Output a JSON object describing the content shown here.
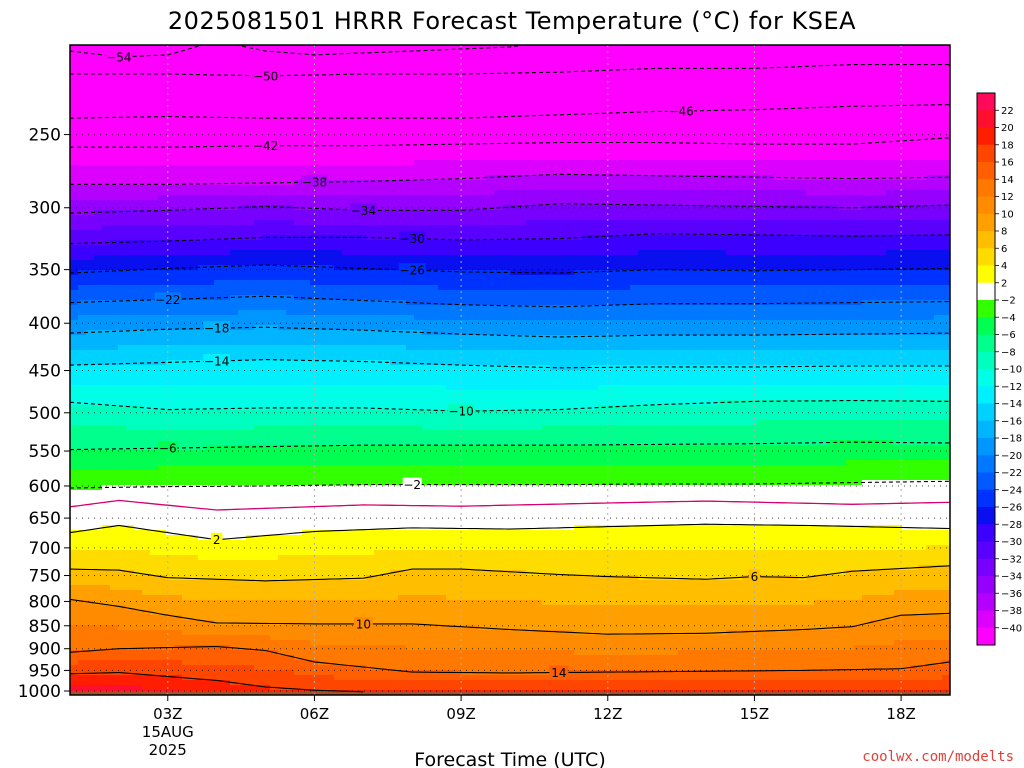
{
  "chart_data": {
    "type": "heatmap",
    "title": "2025081501 HRRR Forecast Temperature (°C) for KSEA",
    "xlabel": "Forecast Time (UTC)",
    "ylabel": "",
    "credit": "coolwx.com/modelts",
    "x_ticks": [
      {
        "hour": 3,
        "label": "03Z",
        "extra": [
          "15AUG",
          "2025"
        ]
      },
      {
        "hour": 6,
        "label": "06Z"
      },
      {
        "hour": 9,
        "label": "09Z"
      },
      {
        "hour": 12,
        "label": "12Z"
      },
      {
        "hour": 15,
        "label": "15Z"
      },
      {
        "hour": 18,
        "label": "18Z"
      }
    ],
    "xlim_hours": [
      1,
      19
    ],
    "y_ticks": [
      250,
      300,
      350,
      400,
      450,
      500,
      550,
      600,
      650,
      700,
      750,
      800,
      850,
      900,
      950,
      1000
    ],
    "ylim_hPa": [
      200,
      1010
    ],
    "y_scale": "log",
    "ground_color": "#a0522d",
    "colorbar": {
      "ticks": [
        22,
        20,
        18,
        16,
        14,
        12,
        10,
        8,
        6,
        4,
        2,
        -2,
        -4,
        -6,
        -8,
        -10,
        -12,
        -14,
        -16,
        -18,
        -20,
        -22,
        -24,
        -26,
        -28,
        -30,
        -32,
        -34,
        -36,
        -38,
        -40
      ],
      "bands": [
        {
          "lo": 22,
          "hi": 24,
          "color": "#ff0a5a"
        },
        {
          "lo": 20,
          "hi": 22,
          "color": "#ff0f2d"
        },
        {
          "lo": 18,
          "hi": 20,
          "color": "#ff1e00"
        },
        {
          "lo": 16,
          "hi": 18,
          "color": "#ff4600"
        },
        {
          "lo": 14,
          "hi": 16,
          "color": "#ff5f00"
        },
        {
          "lo": 12,
          "hi": 14,
          "color": "#ff7800"
        },
        {
          "lo": 10,
          "hi": 12,
          "color": "#ff8c00"
        },
        {
          "lo": 8,
          "hi": 10,
          "color": "#ffa000"
        },
        {
          "lo": 6,
          "hi": 8,
          "color": "#ffbe00"
        },
        {
          "lo": 4,
          "hi": 6,
          "color": "#ffdc00"
        },
        {
          "lo": 2,
          "hi": 4,
          "color": "#ffff00"
        },
        {
          "lo": -2,
          "hi": 2,
          "color": "#ffffff"
        },
        {
          "lo": -4,
          "hi": -2,
          "color": "#32ff00"
        },
        {
          "lo": -6,
          "hi": -4,
          "color": "#00ff50"
        },
        {
          "lo": -8,
          "hi": -6,
          "color": "#00ff8c"
        },
        {
          "lo": -10,
          "hi": -8,
          "color": "#00ffbe"
        },
        {
          "lo": -12,
          "hi": -10,
          "color": "#00ffe6"
        },
        {
          "lo": -14,
          "hi": -12,
          "color": "#00f0ff"
        },
        {
          "lo": -16,
          "hi": -14,
          "color": "#00d2ff"
        },
        {
          "lo": -18,
          "hi": -16,
          "color": "#00b4ff"
        },
        {
          "lo": -20,
          "hi": -18,
          "color": "#0096ff"
        },
        {
          "lo": -22,
          "hi": -20,
          "color": "#0078ff"
        },
        {
          "lo": -24,
          "hi": -22,
          "color": "#005aff"
        },
        {
          "lo": -26,
          "hi": -24,
          "color": "#0032ff"
        },
        {
          "lo": -28,
          "hi": -26,
          "color": "#0a0ff0"
        },
        {
          "lo": -30,
          "hi": -28,
          "color": "#3c00ff"
        },
        {
          "lo": -32,
          "hi": -30,
          "color": "#5a00ff"
        },
        {
          "lo": -34,
          "hi": -32,
          "color": "#7800ff"
        },
        {
          "lo": -36,
          "hi": -34,
          "color": "#9600ff"
        },
        {
          "lo": -38,
          "hi": -36,
          "color": "#b400ff"
        },
        {
          "lo": -40,
          "hi": -38,
          "color": "#dc00ff"
        },
        {
          "lo": -44,
          "hi": -40,
          "color": "#ff00ff"
        }
      ]
    },
    "isotherms": [
      {
        "t": -54,
        "label_hour": 2.0,
        "points": [
          [
            1,
            203
          ],
          [
            2,
            206
          ],
          [
            3,
            205
          ],
          [
            4,
            198
          ],
          [
            5,
            203
          ],
          [
            6,
            205
          ],
          [
            8,
            203
          ],
          [
            10,
            201
          ],
          [
            11,
            197
          ],
          [
            12,
            194
          ],
          [
            13,
            190
          ],
          [
            15,
            188
          ],
          [
            18,
            186
          ],
          [
            19,
            186
          ]
        ]
      },
      {
        "t": -50,
        "label_hour": 5.0,
        "points": [
          [
            1,
            215
          ],
          [
            3,
            215
          ],
          [
            5,
            216
          ],
          [
            7,
            215
          ],
          [
            9,
            215
          ],
          [
            11,
            214
          ],
          [
            13,
            212
          ],
          [
            15,
            212
          ],
          [
            17,
            210
          ],
          [
            19,
            210
          ]
        ]
      },
      {
        "t": -46,
        "label_hour": 13.5,
        "points": [
          [
            1,
            240
          ],
          [
            3,
            239
          ],
          [
            5,
            240
          ],
          [
            7,
            240
          ],
          [
            9,
            240
          ],
          [
            11,
            238
          ],
          [
            13,
            236
          ],
          [
            15,
            235
          ],
          [
            17,
            233
          ],
          [
            19,
            232
          ]
        ]
      },
      {
        "t": -42,
        "label_hour": 5.0,
        "points": [
          [
            1,
            258
          ],
          [
            3,
            258
          ],
          [
            5,
            257
          ],
          [
            7,
            257
          ],
          [
            9,
            256
          ],
          [
            11,
            255
          ],
          [
            13,
            255
          ],
          [
            15,
            256
          ],
          [
            17,
            256
          ],
          [
            19,
            252
          ]
        ]
      },
      {
        "t": -38,
        "label_hour": 6.0,
        "points": [
          [
            1,
            283
          ],
          [
            3,
            283
          ],
          [
            5,
            282
          ],
          [
            7,
            281
          ],
          [
            9,
            279
          ],
          [
            11,
            276
          ],
          [
            13,
            277
          ],
          [
            15,
            278
          ],
          [
            17,
            279
          ],
          [
            19,
            278
          ]
        ]
      },
      {
        "t": -34,
        "label_hour": 7.0,
        "points": [
          [
            1,
            304
          ],
          [
            3,
            302
          ],
          [
            5,
            299
          ],
          [
            7,
            302
          ],
          [
            9,
            302
          ],
          [
            11,
            297
          ],
          [
            13,
            298
          ],
          [
            15,
            299
          ],
          [
            17,
            300
          ],
          [
            19,
            298
          ]
        ]
      },
      {
        "t": -30,
        "label_hour": 8.0,
        "points": [
          [
            1,
            328
          ],
          [
            3,
            326
          ],
          [
            5,
            323
          ],
          [
            7,
            323
          ],
          [
            9,
            325
          ],
          [
            11,
            324
          ],
          [
            13,
            320
          ],
          [
            15,
            321
          ],
          [
            17,
            322
          ],
          [
            19,
            321
          ]
        ]
      },
      {
        "t": -26,
        "label_hour": 8.0,
        "points": [
          [
            1,
            353
          ],
          [
            3,
            349
          ],
          [
            5,
            346
          ],
          [
            7,
            349
          ],
          [
            9,
            352
          ],
          [
            11,
            353
          ],
          [
            13,
            350
          ],
          [
            15,
            351
          ],
          [
            17,
            350
          ],
          [
            19,
            349
          ]
        ]
      },
      {
        "t": -22,
        "label_hour": 3.0,
        "points": [
          [
            1,
            380
          ],
          [
            3,
            377
          ],
          [
            5,
            374
          ],
          [
            7,
            378
          ],
          [
            9,
            382
          ],
          [
            11,
            384
          ],
          [
            13,
            381
          ],
          [
            15,
            381
          ],
          [
            17,
            380
          ],
          [
            19,
            379
          ]
        ]
      },
      {
        "t": -18,
        "label_hour": 4.0,
        "points": [
          [
            1,
            410
          ],
          [
            3,
            406
          ],
          [
            5,
            404
          ],
          [
            7,
            407
          ],
          [
            9,
            411
          ],
          [
            11,
            414
          ],
          [
            13,
            412
          ],
          [
            15,
            412
          ],
          [
            17,
            411
          ],
          [
            19,
            410
          ]
        ]
      },
      {
        "t": -14,
        "label_hour": 4.0,
        "points": [
          [
            1,
            444
          ],
          [
            3,
            441
          ],
          [
            5,
            438
          ],
          [
            7,
            440
          ],
          [
            9,
            444
          ],
          [
            11,
            447
          ],
          [
            13,
            446
          ],
          [
            15,
            446
          ],
          [
            17,
            445
          ],
          [
            19,
            445
          ]
        ]
      },
      {
        "t": -10,
        "label_hour": 9.0,
        "points": [
          [
            1,
            487
          ],
          [
            3,
            496
          ],
          [
            5,
            494
          ],
          [
            7,
            494
          ],
          [
            9,
            498
          ],
          [
            11,
            496
          ],
          [
            13,
            490
          ],
          [
            15,
            486
          ],
          [
            17,
            485
          ],
          [
            19,
            486
          ]
        ]
      },
      {
        "t": -6,
        "label_hour": 3.0,
        "points": [
          [
            1,
            548
          ],
          [
            3,
            546
          ],
          [
            5,
            544
          ],
          [
            7,
            542
          ],
          [
            9,
            542
          ],
          [
            11,
            542
          ],
          [
            13,
            541
          ],
          [
            15,
            540
          ],
          [
            17,
            538
          ],
          [
            19,
            539
          ]
        ]
      },
      {
        "t": -2,
        "label_hour": 8.0,
        "points": [
          [
            1,
            603
          ],
          [
            3,
            601
          ],
          [
            5,
            600
          ],
          [
            7,
            598
          ],
          [
            9,
            598
          ],
          [
            11,
            598
          ],
          [
            13,
            597
          ],
          [
            15,
            597
          ],
          [
            17,
            595
          ],
          [
            19,
            593
          ]
        ]
      },
      {
        "t": 0,
        "label_hour": null,
        "points": [
          [
            1,
            632
          ],
          [
            2,
            622
          ],
          [
            4,
            637
          ],
          [
            7,
            629
          ],
          [
            9,
            631
          ],
          [
            12,
            626
          ],
          [
            14,
            623
          ],
          [
            17,
            628
          ],
          [
            19,
            625
          ]
        ]
      },
      {
        "t": 2,
        "label_hour": 4.0,
        "points": [
          [
            1,
            674
          ],
          [
            2,
            662
          ],
          [
            4,
            686
          ],
          [
            6,
            672
          ],
          [
            8,
            666
          ],
          [
            10,
            668
          ],
          [
            12,
            664
          ],
          [
            14,
            660
          ],
          [
            16,
            662
          ],
          [
            19,
            667
          ]
        ]
      },
      {
        "t": 6,
        "label_hour": 15.0,
        "points": [
          [
            1,
            738
          ],
          [
            2,
            740
          ],
          [
            3,
            754
          ],
          [
            5,
            760
          ],
          [
            7,
            755
          ],
          [
            8,
            738
          ],
          [
            9,
            738
          ],
          [
            11,
            748
          ],
          [
            12,
            752
          ],
          [
            14,
            757
          ],
          [
            15,
            752
          ],
          [
            16,
            754
          ],
          [
            17,
            742
          ],
          [
            19,
            732
          ]
        ]
      },
      {
        "t": 10,
        "label_hour": 7.0,
        "points": [
          [
            1,
            796
          ],
          [
            2,
            810
          ],
          [
            3,
            828
          ],
          [
            4,
            844
          ],
          [
            6,
            846
          ],
          [
            8,
            846
          ],
          [
            10,
            858
          ],
          [
            12,
            868
          ],
          [
            14,
            866
          ],
          [
            16,
            858
          ],
          [
            17,
            852
          ],
          [
            18,
            828
          ],
          [
            19,
            824
          ]
        ]
      },
      {
        "t": 14,
        "label_hour": 11.0,
        "points": [
          [
            1,
            908
          ],
          [
            2,
            900
          ],
          [
            4,
            895
          ],
          [
            5,
            904
          ],
          [
            6,
            930
          ],
          [
            8,
            954
          ],
          [
            10,
            956
          ],
          [
            12,
            954
          ],
          [
            14,
            952
          ],
          [
            16,
            950
          ],
          [
            18,
            946
          ],
          [
            19,
            930
          ]
        ]
      },
      {
        "t": 18,
        "label_hour": null,
        "points": [
          [
            1,
            958
          ],
          [
            2,
            955
          ],
          [
            4,
            974
          ],
          [
            5,
            990
          ],
          [
            6,
            998
          ],
          [
            7,
            1002
          ]
        ]
      }
    ]
  }
}
